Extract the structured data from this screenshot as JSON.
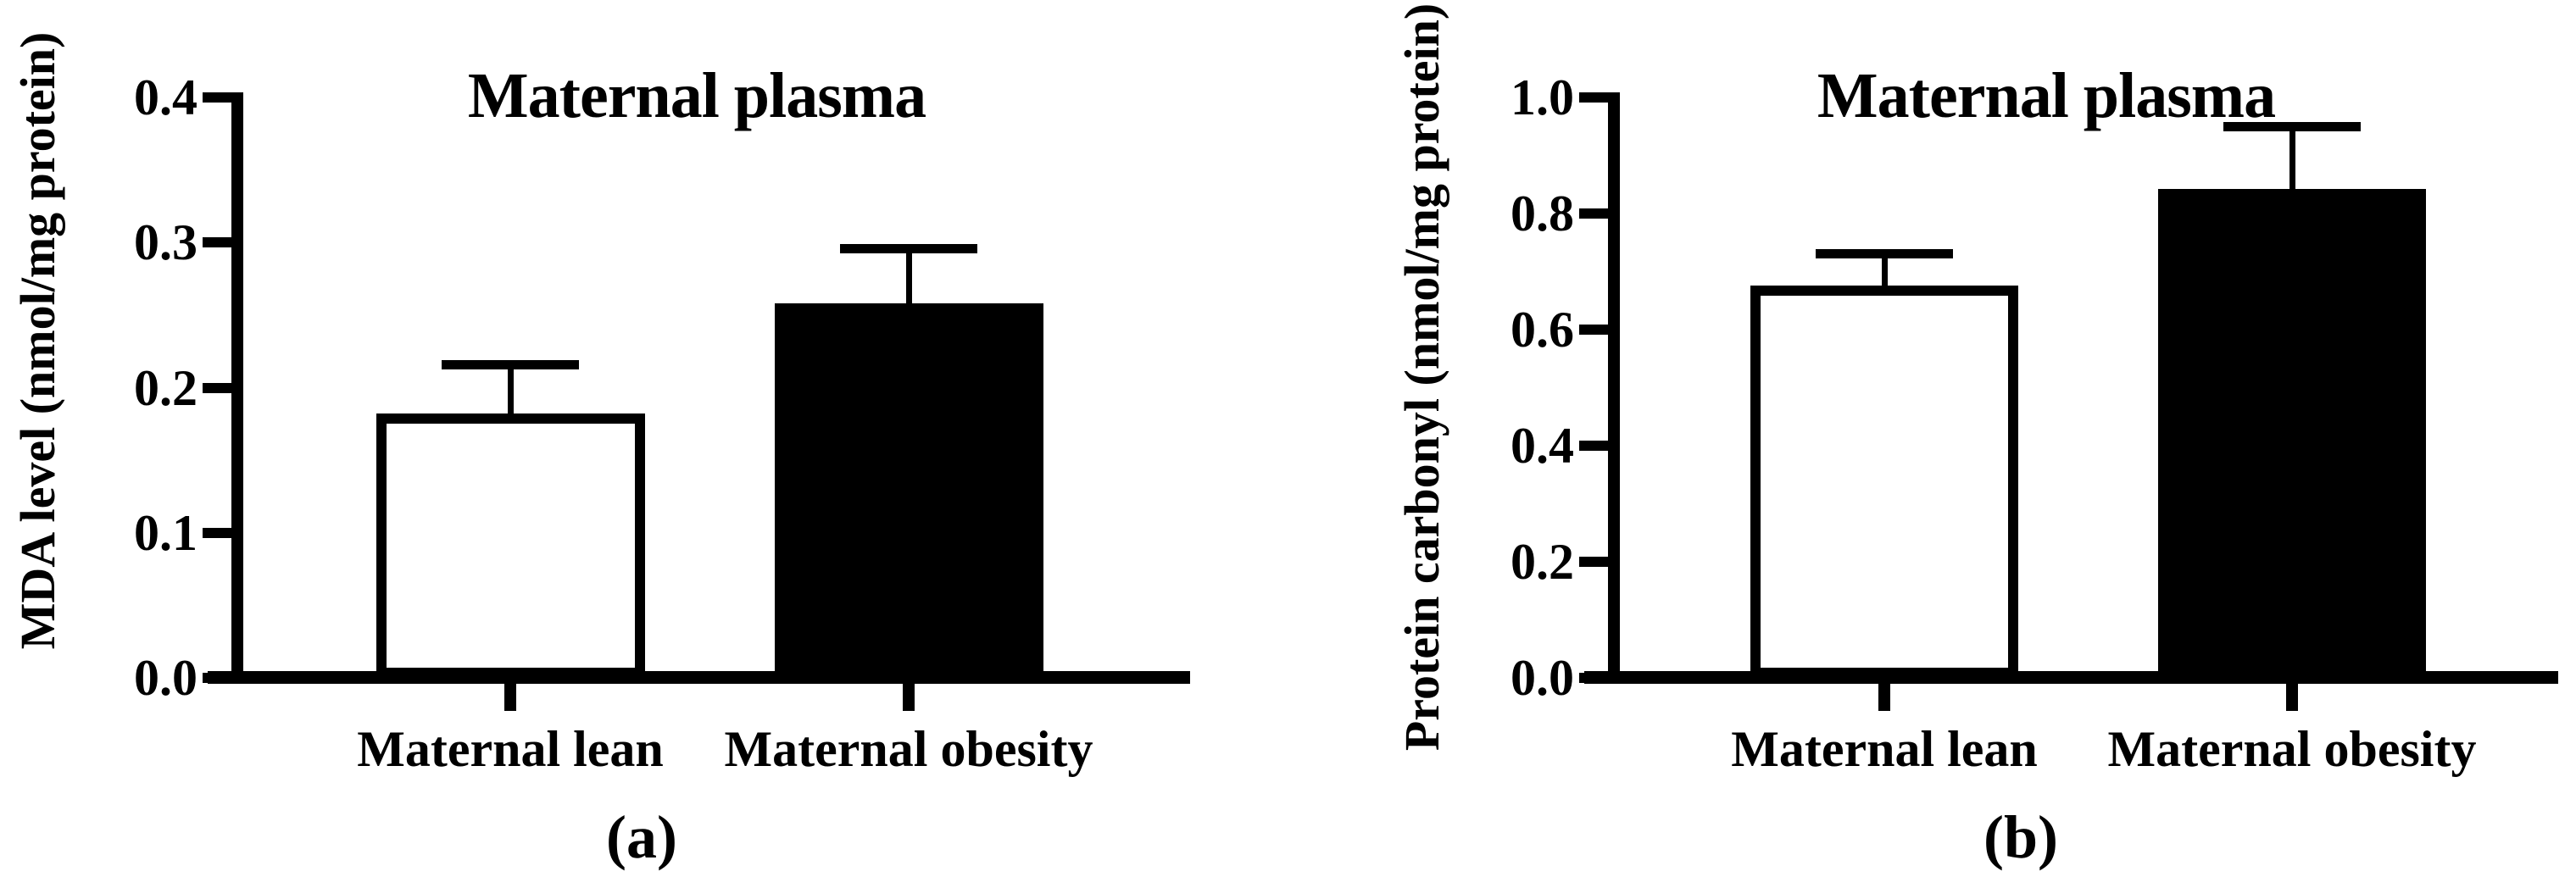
{
  "figure": {
    "background_color": "#ffffff",
    "ink_color": "#000000"
  },
  "chart_data": [
    {
      "type": "bar",
      "panel_label": "(a)",
      "title": "Maternal plasma",
      "xlabel": "",
      "ylabel": "MDA level (nmol/mg protein)",
      "categories": [
        "Maternal lean",
        "Maternal obesity"
      ],
      "values": [
        0.182,
        0.258
      ],
      "errors_plus": [
        0.034,
        0.038
      ],
      "error_style": "upper whisker with cap",
      "bar_fills": [
        "#ffffff",
        "#000000"
      ],
      "bar_edge_color": "#000000",
      "ylim": [
        0.0,
        0.4
      ],
      "yticks": [
        "0.0",
        "0.1",
        "0.2",
        "0.3",
        "0.4"
      ],
      "grid": false,
      "legend": "none"
    },
    {
      "type": "bar",
      "panel_label": "(b)",
      "title": "Maternal plasma",
      "xlabel": "",
      "ylabel": "Protein carbonyl (nmol/mg protein)",
      "categories": [
        "Maternal lean",
        "Maternal obesity"
      ],
      "values": [
        0.676,
        0.843
      ],
      "errors_plus": [
        0.055,
        0.108
      ],
      "error_style": "upper whisker with cap",
      "bar_fills": [
        "#ffffff",
        "#000000"
      ],
      "bar_edge_color": "#000000",
      "ylim": [
        0.0,
        1.0
      ],
      "yticks": [
        "0.0",
        "0.2",
        "0.4",
        "0.6",
        "0.8",
        "1.0"
      ],
      "grid": false,
      "legend": "none"
    }
  ]
}
